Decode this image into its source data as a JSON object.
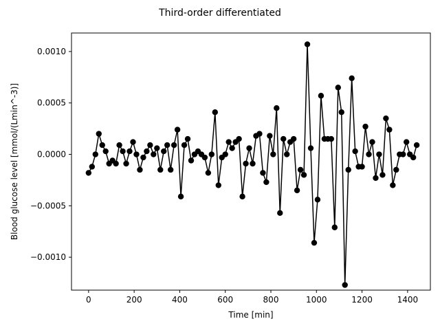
{
  "chart_data": {
    "type": "line",
    "title": "Third-order differentiated",
    "xlabel": "Time [min]",
    "ylabel": "Blood glucose level [mmol/(Lmin^-3)]",
    "xlim": [
      -75,
      1500
    ],
    "ylim": [
      -0.00132,
      0.00118
    ],
    "xticks": [
      0,
      200,
      400,
      600,
      800,
      1000,
      1200,
      1400
    ],
    "xtick_labels": [
      "0",
      "200",
      "400",
      "600",
      "800",
      "1000",
      "1200",
      "1400"
    ],
    "yticks": [
      -0.001,
      -0.0005,
      0.0,
      0.0005,
      0.001
    ],
    "ytick_labels": [
      "−0.0010",
      "−0.0005",
      "0.0000",
      "0.0005",
      "0.0010"
    ],
    "grid": false,
    "series": [
      {
        "color": "#000000",
        "marker": "circle",
        "x": [
          0,
          15,
          30,
          45,
          60,
          75,
          90,
          105,
          120,
          135,
          150,
          165,
          180,
          195,
          210,
          225,
          240,
          255,
          270,
          285,
          300,
          315,
          330,
          345,
          360,
          375,
          390,
          405,
          420,
          435,
          450,
          465,
          480,
          495,
          510,
          525,
          540,
          555,
          570,
          585,
          600,
          615,
          630,
          645,
          660,
          675,
          690,
          705,
          720,
          735,
          750,
          765,
          780,
          795,
          810,
          825,
          840,
          855,
          870,
          885,
          900,
          915,
          930,
          945,
          960,
          975,
          990,
          1005,
          1020,
          1035,
          1050,
          1065,
          1080,
          1095,
          1110,
          1125,
          1140,
          1155,
          1170,
          1185,
          1200,
          1215,
          1230,
          1245,
          1260,
          1275,
          1290,
          1305,
          1320,
          1335,
          1350,
          1365,
          1380,
          1395,
          1410,
          1425,
          1440
        ],
        "y": [
          -0.00018,
          -0.00012,
          0.0,
          0.0002,
          9e-05,
          3e-05,
          -9e-05,
          -6e-05,
          -9e-05,
          9e-05,
          3e-05,
          -9e-05,
          3e-05,
          0.00012,
          0.0,
          -0.00015,
          -3e-05,
          3e-05,
          9e-05,
          0.0,
          6e-05,
          -0.00015,
          3e-05,
          9e-05,
          -0.00015,
          9e-05,
          0.00024,
          -0.00041,
          9e-05,
          0.00015,
          -6e-05,
          0.0,
          3e-05,
          0.0,
          -3e-05,
          -0.00018,
          0.0,
          0.00041,
          -0.0003,
          -3e-05,
          0.0,
          0.00012,
          6e-05,
          0.00012,
          0.00015,
          -0.00041,
          -9e-05,
          6e-05,
          -9e-05,
          0.00018,
          0.0002,
          -0.00018,
          -0.00027,
          0.00018,
          0.0,
          0.00045,
          -0.00057,
          0.00015,
          0.0,
          0.00012,
          0.00015,
          -0.00035,
          -0.00015,
          -0.0002,
          0.00107,
          6e-05,
          -0.00086,
          -0.00044,
          0.00057,
          0.00015,
          0.00015,
          0.00015,
          -0.00071,
          0.00065,
          0.00041,
          -0.00127,
          -0.00015,
          0.00074,
          3e-05,
          -0.00012,
          -0.00012,
          0.00027,
          0.0,
          0.00012,
          -0.00023,
          0.0,
          -0.0002,
          0.00035,
          0.00024,
          -0.0003,
          -0.00015,
          0.0,
          0.0,
          0.00012,
          0.0,
          -3e-05,
          9e-05
        ]
      }
    ]
  }
}
